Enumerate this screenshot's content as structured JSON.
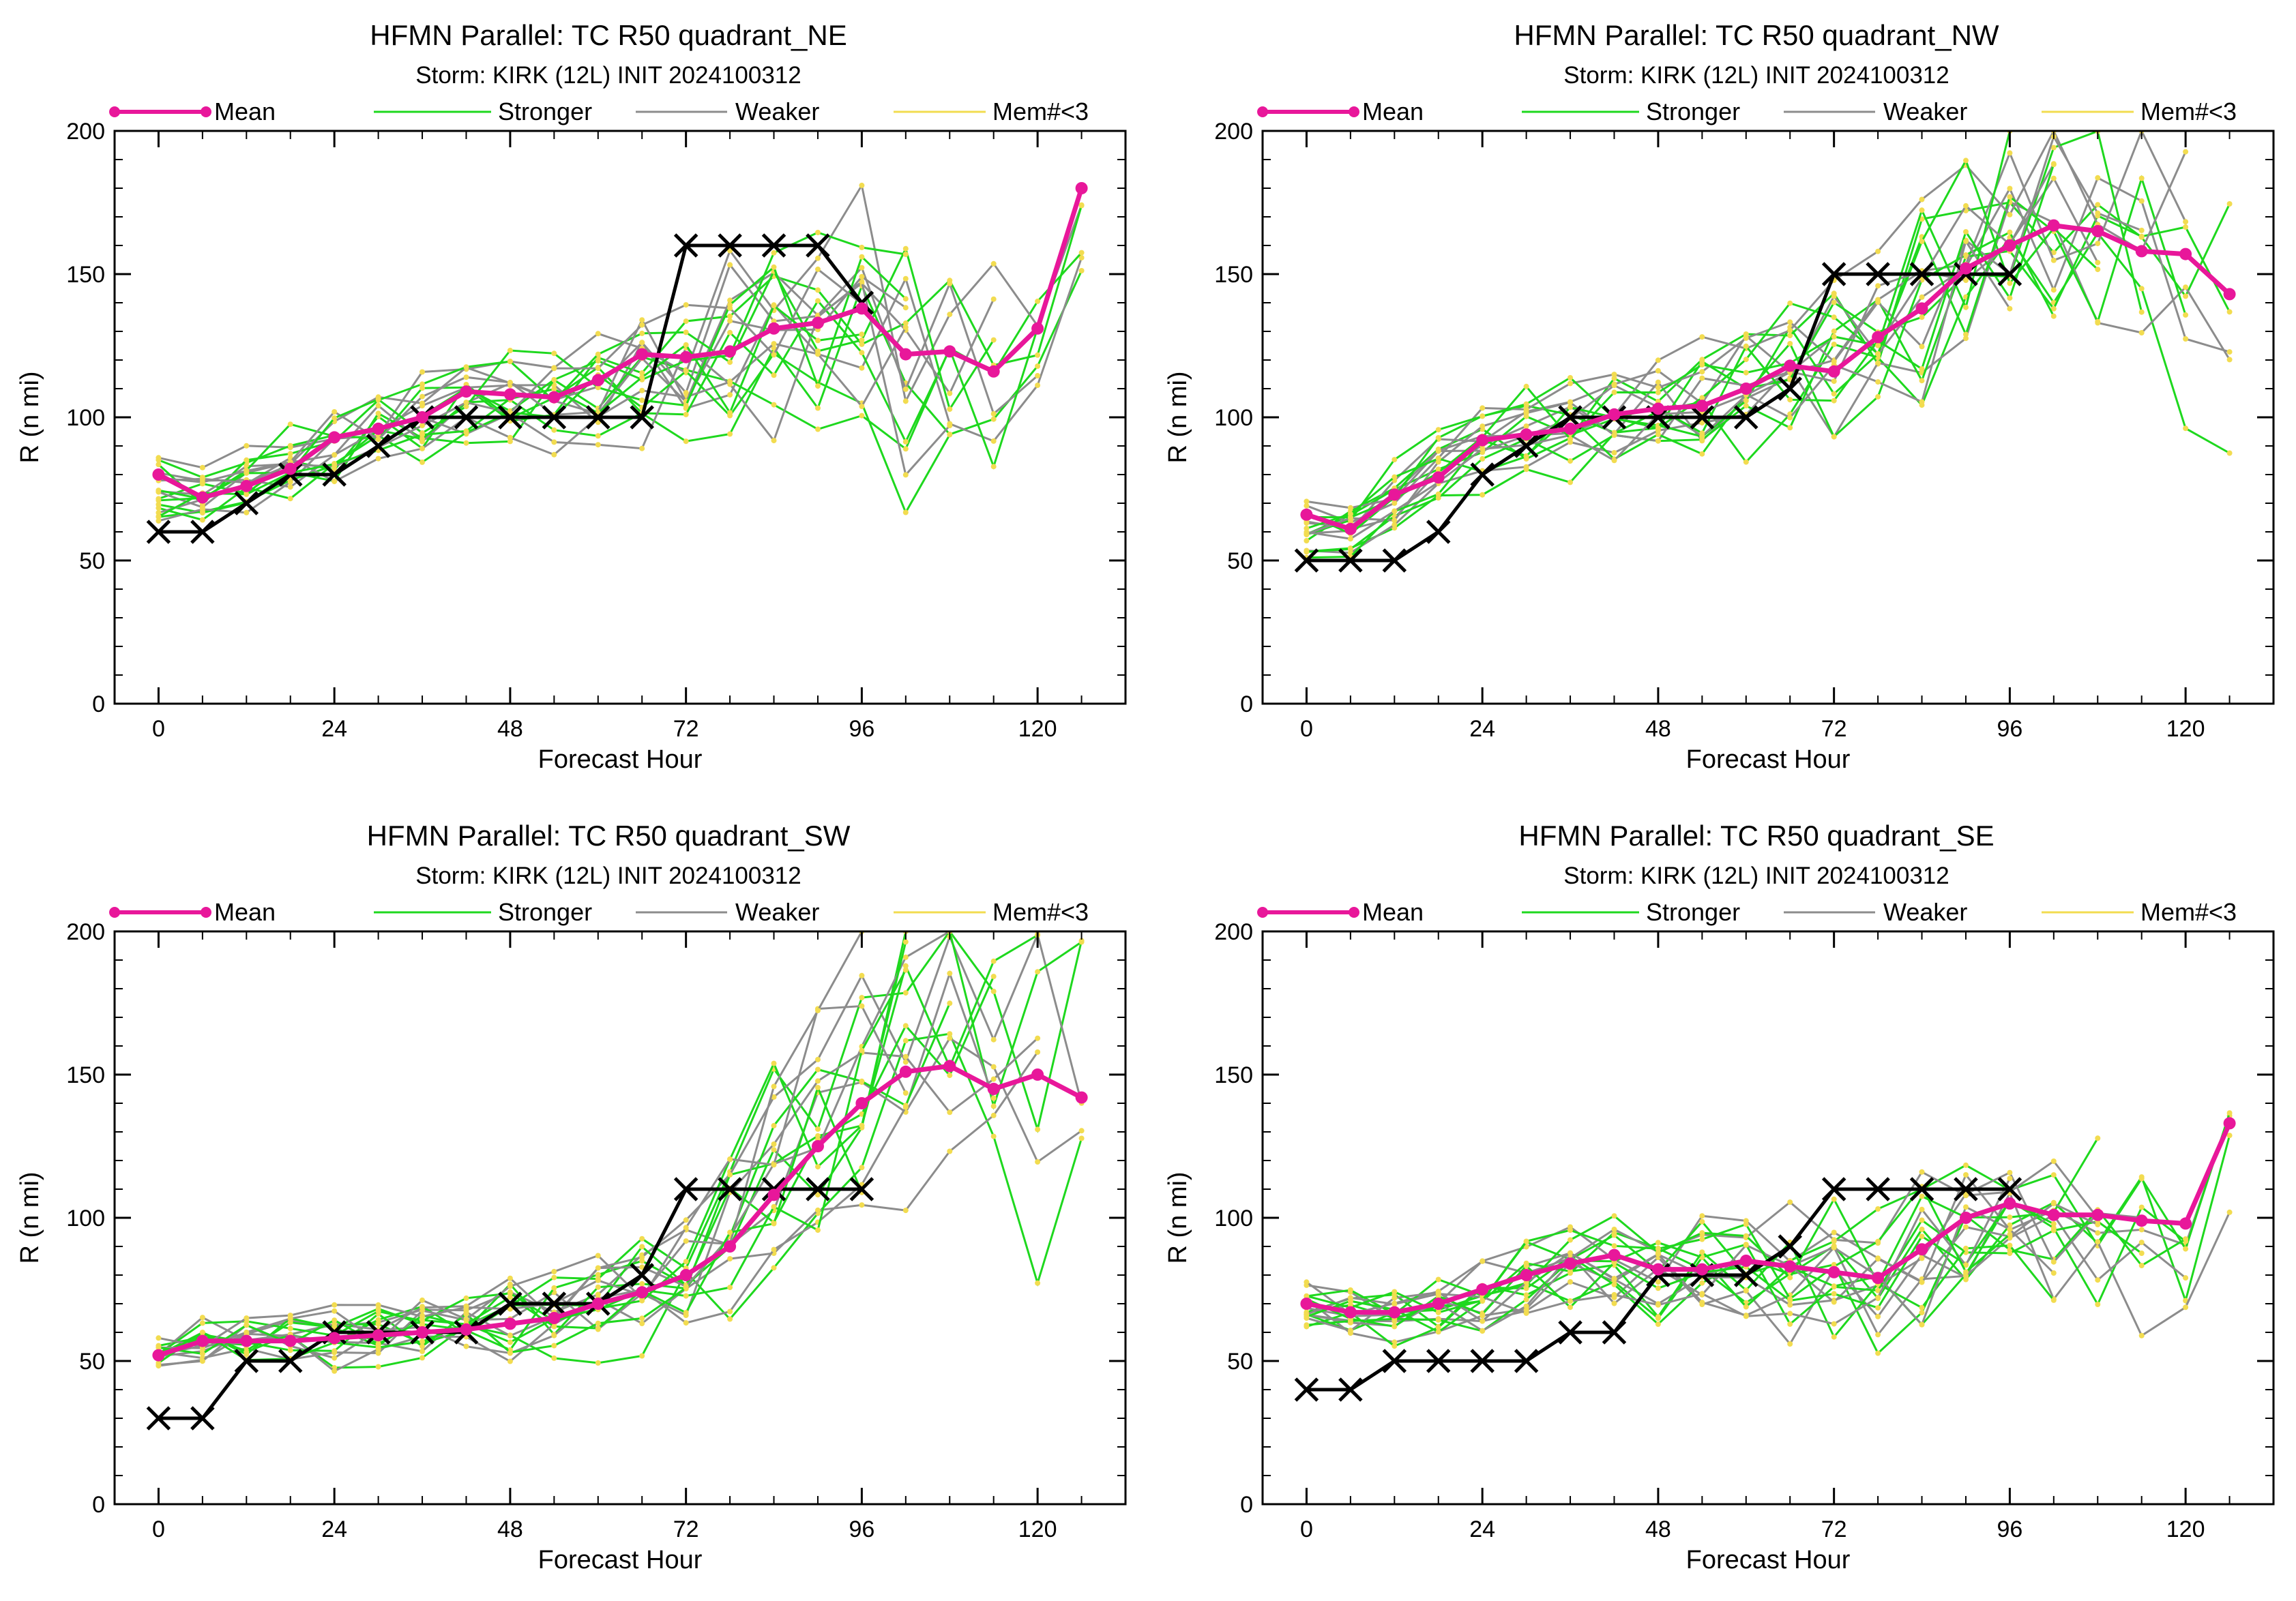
{
  "legend": {
    "mean": "Mean",
    "stronger": "Stronger",
    "weaker": "Weaker",
    "mem": "Mem#<3"
  },
  "colors": {
    "mean": "#e8179a",
    "stronger": "#1ed81e",
    "weaker": "#8c8c8c",
    "mem": "#f2dc50",
    "best_track": "#000000"
  },
  "chart_data": [
    {
      "type": "line",
      "title": "HFMN Parallel: TC  R50 quadrant_NE",
      "subtitle": "Storm: KIRK (12L) INIT 2024100312",
      "xlabel": "Forecast Hour",
      "ylabel": "R (n mi)",
      "xlim": [
        -6,
        132
      ],
      "ylim": [
        0,
        200
      ],
      "xticks": [
        0,
        24,
        48,
        72,
        96,
        120
      ],
      "yticks": [
        0,
        50,
        100,
        150,
        200
      ],
      "x": [
        0,
        6,
        12,
        18,
        24,
        30,
        36,
        42,
        48,
        54,
        60,
        66,
        72,
        78,
        84,
        90,
        96,
        102,
        108,
        114,
        120,
        126
      ],
      "mean": [
        80,
        72,
        76,
        82,
        93,
        96,
        100,
        109,
        108,
        107,
        113,
        122,
        121,
        123,
        131,
        133,
        138,
        122,
        123,
        116,
        131,
        180
      ],
      "best_track": {
        "x": [
          0,
          6,
          12,
          18,
          24,
          30,
          36,
          42,
          48,
          54,
          60,
          66,
          72,
          78,
          84,
          90,
          96
        ],
        "y": [
          60,
          60,
          70,
          80,
          80,
          90,
          100,
          100,
          100,
          100,
          100,
          100,
          160,
          160,
          160,
          160,
          140
        ]
      },
      "spread": {
        "center": [
          75,
          72,
          78,
          84,
          92,
          96,
          100,
          106,
          107,
          108,
          110,
          115,
          120,
          123,
          128,
          130,
          135,
          120,
          122,
          118,
          130,
          170
        ],
        "width": [
          14,
          14,
          16,
          18,
          18,
          18,
          20,
          22,
          24,
          26,
          28,
          32,
          40,
          44,
          48,
          50,
          54,
          60,
          56,
          50,
          40,
          30
        ],
        "end_index": [
          21,
          21,
          21,
          21,
          21,
          20,
          20,
          19,
          19,
          18,
          18,
          17,
          17,
          17,
          17,
          16,
          16
        ]
      }
    },
    {
      "type": "line",
      "title": "HFMN Parallel: TC  R50 quadrant_NW",
      "subtitle": "Storm: KIRK (12L) INIT 2024100312",
      "xlabel": "Forecast Hour",
      "ylabel": "R (n mi)",
      "xlim": [
        -6,
        132
      ],
      "ylim": [
        0,
        200
      ],
      "xticks": [
        0,
        24,
        48,
        72,
        96,
        120
      ],
      "yticks": [
        0,
        50,
        100,
        150,
        200
      ],
      "x": [
        0,
        6,
        12,
        18,
        24,
        30,
        36,
        42,
        48,
        54,
        60,
        66,
        72,
        78,
        84,
        90,
        96,
        102,
        108,
        114,
        120,
        126
      ],
      "mean": [
        66,
        61,
        73,
        79,
        92,
        94,
        96,
        101,
        103,
        104,
        110,
        118,
        116,
        128,
        138,
        152,
        160,
        167,
        165,
        158,
        157,
        143
      ],
      "best_track": {
        "x": [
          0,
          6,
          12,
          18,
          24,
          30,
          36,
          42,
          48,
          54,
          60,
          66,
          72,
          78,
          84,
          90,
          96
        ],
        "y": [
          50,
          50,
          50,
          60,
          80,
          90,
          100,
          100,
          100,
          100,
          100,
          110,
          150,
          150,
          150,
          150,
          150
        ]
      },
      "spread": {
        "center": [
          62,
          60,
          72,
          80,
          90,
          94,
          96,
          100,
          102,
          104,
          110,
          118,
          120,
          130,
          140,
          150,
          158,
          165,
          162,
          155,
          150,
          140
        ],
        "width": [
          14,
          12,
          16,
          18,
          20,
          20,
          22,
          24,
          26,
          28,
          30,
          34,
          38,
          42,
          46,
          48,
          50,
          52,
          54,
          56,
          60,
          60
        ],
        "end_index": [
          21,
          21,
          21,
          21,
          21,
          20,
          20,
          20,
          19,
          19,
          18,
          18,
          17,
          17,
          17,
          16,
          16
        ]
      }
    },
    {
      "type": "line",
      "title": "HFMN Parallel: TC  R50 quadrant_SW",
      "subtitle": "Storm: KIRK (12L) INIT 2024100312",
      "xlabel": "Forecast Hour",
      "ylabel": "R (n mi)",
      "xlim": [
        -6,
        132
      ],
      "ylim": [
        0,
        200
      ],
      "xticks": [
        0,
        24,
        48,
        72,
        96,
        120
      ],
      "yticks": [
        0,
        50,
        100,
        150,
        200
      ],
      "x": [
        0,
        6,
        12,
        18,
        24,
        30,
        36,
        42,
        48,
        54,
        60,
        66,
        72,
        78,
        84,
        90,
        96,
        102,
        108,
        114,
        120,
        126
      ],
      "mean": [
        52,
        57,
        57,
        57,
        58,
        59,
        60,
        61,
        63,
        65,
        70,
        74,
        80,
        90,
        108,
        125,
        140,
        151,
        153,
        145,
        150,
        142
      ],
      "best_track": {
        "x": [
          0,
          6,
          12,
          18,
          24,
          30,
          36,
          42,
          48,
          54,
          60,
          66,
          72,
          78,
          84,
          90,
          96
        ],
        "y": [
          30,
          30,
          50,
          50,
          60,
          60,
          60,
          60,
          70,
          70,
          70,
          80,
          110,
          110,
          110,
          110,
          110
        ]
      },
      "spread": {
        "center": [
          53,
          56,
          57,
          57,
          58,
          59,
          60,
          61,
          63,
          65,
          69,
          74,
          80,
          92,
          110,
          128,
          140,
          150,
          152,
          140,
          145,
          140
        ],
        "width": [
          8,
          10,
          12,
          12,
          14,
          14,
          16,
          16,
          18,
          20,
          22,
          26,
          32,
          40,
          50,
          60,
          70,
          80,
          80,
          80,
          90,
          100
        ],
        "end_index": [
          21,
          21,
          21,
          21,
          21,
          20,
          20,
          20,
          19,
          19,
          18,
          18,
          17,
          17,
          17,
          16,
          16
        ]
      }
    },
    {
      "type": "line",
      "title": "HFMN Parallel: TC  R50 quadrant_SE",
      "subtitle": "Storm: KIRK (12L) INIT 2024100312",
      "xlabel": "Forecast Hour",
      "ylabel": "R (n mi)",
      "xlim": [
        -6,
        132
      ],
      "ylim": [
        0,
        200
      ],
      "xticks": [
        0,
        24,
        48,
        72,
        96,
        120
      ],
      "yticks": [
        0,
        50,
        100,
        150,
        200
      ],
      "x": [
        0,
        6,
        12,
        18,
        24,
        30,
        36,
        42,
        48,
        54,
        60,
        66,
        72,
        78,
        84,
        90,
        96,
        102,
        108,
        114,
        120,
        126
      ],
      "mean": [
        70,
        67,
        67,
        70,
        75,
        80,
        84,
        87,
        82,
        82,
        85,
        83,
        81,
        79,
        89,
        100,
        105,
        101,
        101,
        99,
        98,
        133
      ],
      "best_track": {
        "x": [
          0,
          6,
          12,
          18,
          24,
          30,
          36,
          42,
          48,
          54,
          60,
          66,
          72,
          78,
          84,
          90,
          96
        ],
        "y": [
          40,
          40,
          50,
          50,
          50,
          50,
          60,
          60,
          80,
          80,
          80,
          90,
          110,
          110,
          110,
          110,
          110
        ]
      },
      "spread": {
        "center": [
          70,
          68,
          68,
          70,
          74,
          80,
          84,
          86,
          84,
          84,
          85,
          84,
          82,
          82,
          90,
          98,
          104,
          100,
          100,
          98,
          100,
          130
        ],
        "width": [
          10,
          12,
          14,
          16,
          18,
          20,
          20,
          22,
          24,
          26,
          28,
          30,
          32,
          34,
          36,
          36,
          36,
          38,
          40,
          44,
          50,
          60
        ],
        "end_index": [
          21,
          21,
          21,
          21,
          20,
          20,
          20,
          19,
          19,
          18,
          18,
          18,
          17,
          17,
          17,
          16,
          16
        ]
      }
    }
  ]
}
